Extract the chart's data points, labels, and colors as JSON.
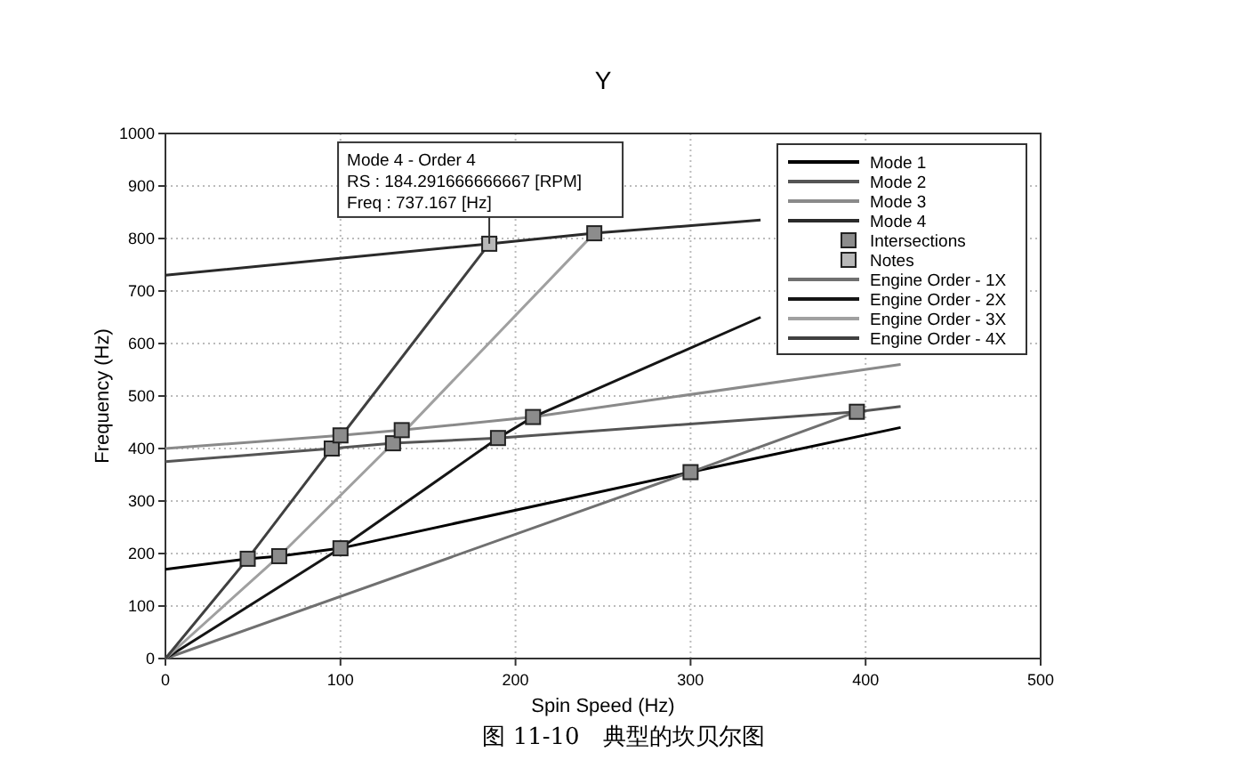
{
  "chart_data": {
    "type": "line",
    "title": "Y",
    "xlabel": "Spin Speed (Hz)",
    "ylabel": "Frequency (Hz)",
    "xlim": [
      0,
      500
    ],
    "ylim": [
      0,
      1000
    ],
    "xticks": [
      0,
      100,
      200,
      300,
      400,
      500
    ],
    "yticks": [
      0,
      100,
      200,
      300,
      400,
      500,
      600,
      700,
      800,
      900,
      1000
    ],
    "grid": true,
    "legend": "top right",
    "line_style": "solid",
    "series": [
      {
        "name": "Mode 1",
        "color": "#000000",
        "x": [
          0,
          47,
          65,
          100,
          300,
          420
        ],
        "values": [
          170,
          190,
          195,
          210,
          355,
          440
        ]
      },
      {
        "name": "Mode 2",
        "color": "#555555",
        "x": [
          0,
          95,
          130,
          190,
          395,
          420
        ],
        "values": [
          375,
          400,
          410,
          420,
          470,
          480
        ]
      },
      {
        "name": "Mode 3",
        "color": "#8a8a8a",
        "x": [
          0,
          100,
          135,
          210,
          420
        ],
        "values": [
          400,
          425,
          435,
          460,
          560
        ]
      },
      {
        "name": "Mode 4",
        "color": "#2a2a2a",
        "x": [
          0,
          185,
          245,
          340
        ],
        "values": [
          730,
          790,
          810,
          835
        ]
      },
      {
        "name": "Intersections",
        "type": "scatter",
        "marker": "square",
        "color": "#8c8c8c",
        "x": [
          47,
          65,
          100,
          95,
          130,
          190,
          100,
          135,
          210,
          245,
          300,
          395
        ],
        "values": [
          190,
          195,
          210,
          400,
          410,
          420,
          425,
          435,
          460,
          810,
          355,
          470
        ]
      },
      {
        "name": "Notes",
        "type": "scatter",
        "marker": "square",
        "color": "#b8b8b8",
        "x": [
          185
        ],
        "values": [
          790
        ]
      },
      {
        "name": "Engine Order - 1X",
        "color": "#707070",
        "x": [
          0,
          300,
          395
        ],
        "values": [
          0,
          355,
          470
        ]
      },
      {
        "name": "Engine Order - 2X",
        "color": "#151515",
        "x": [
          0,
          100,
          190,
          210,
          340
        ],
        "values": [
          0,
          210,
          420,
          460,
          650
        ]
      },
      {
        "name": "Engine Order - 3X",
        "color": "#a0a0a0",
        "x": [
          0,
          65,
          130,
          245
        ],
        "values": [
          0,
          195,
          410,
          810
        ]
      },
      {
        "name": "Engine Order - 4X",
        "color": "#404040",
        "x": [
          0,
          47,
          95,
          185
        ],
        "values": [
          0,
          190,
          400,
          790
        ]
      }
    ],
    "annotations": [
      {
        "text": "Mode 4 - Order 4\nRS : 184.291666666667 [RPM]\nFreq : 737.167 [Hz]",
        "x": 185,
        "y": 790
      },
      "图 11-10　典型的坎贝尔图"
    ]
  }
}
